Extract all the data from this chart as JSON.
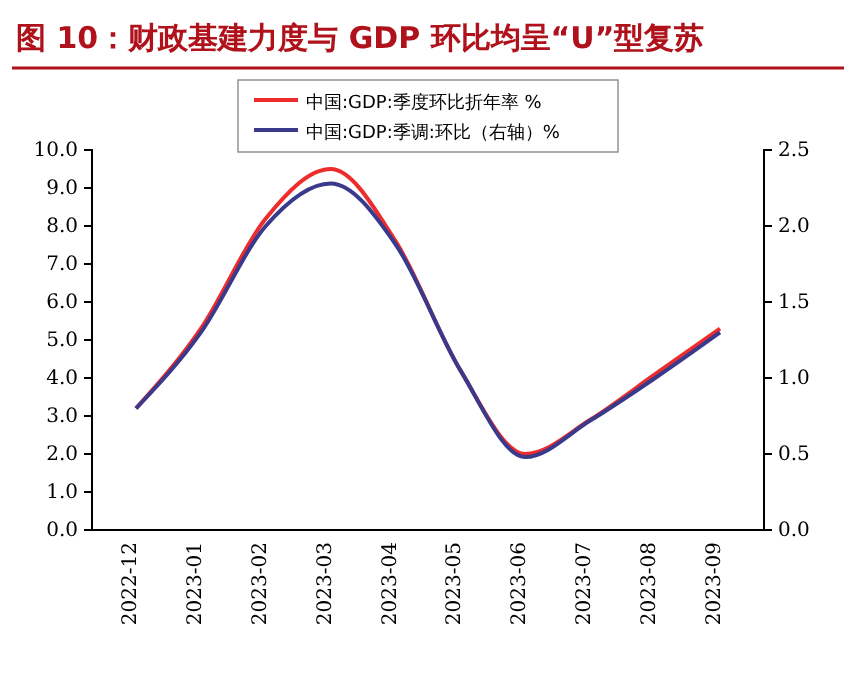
{
  "chart_data": {
    "type": "line",
    "title": "图 10：财政基建力度与 GDP 环比均呈“U”型复苏",
    "categories": [
      "2022-12",
      "2023-01",
      "2023-02",
      "2023-03",
      "2023-04",
      "2023-05",
      "2023-06",
      "2023-07",
      "2023-08",
      "2023-09"
    ],
    "series": [
      {
        "name": "中国:GDP:季度环比折年率 %",
        "color": "#ee2c2c",
        "values": [
          3.2,
          5.3,
          8.2,
          9.5,
          7.6,
          4.2,
          2.0,
          2.9,
          4.1,
          5.3
        ]
      },
      {
        "name": "中国:GDP:季调:环比（右轴）%",
        "color": "#3a3a8c",
        "axis": "y2",
        "values": [
          0.8,
          1.3,
          2.0,
          2.28,
          1.88,
          1.05,
          0.48,
          0.72,
          1.0,
          1.3
        ]
      }
    ],
    "ylim": [
      0,
      10
    ],
    "yticks": [
      {
        "value": 0,
        "label": "0.0"
      },
      {
        "value": 1,
        "label": "1.0"
      },
      {
        "value": 2,
        "label": "2.0"
      },
      {
        "value": 3,
        "label": "3.0"
      },
      {
        "value": 4,
        "label": "4.0"
      },
      {
        "value": 5,
        "label": "5.0"
      },
      {
        "value": 6,
        "label": "6.0"
      },
      {
        "value": 7,
        "label": "7.0"
      },
      {
        "value": 8,
        "label": "8.0"
      },
      {
        "value": 9,
        "label": "9.0"
      },
      {
        "value": 10,
        "label": "10.0"
      }
    ],
    "y2lim": [
      0,
      2.5
    ],
    "y2ticks": [
      {
        "value": 0,
        "label": "0.0"
      },
      {
        "value": 0.5,
        "label": "0.5"
      },
      {
        "value": 1,
        "label": "1.0"
      },
      {
        "value": 1.5,
        "label": "1.5"
      },
      {
        "value": 2,
        "label": "2.0"
      },
      {
        "value": 2.5,
        "label": "2.5"
      }
    ],
    "legend": "top",
    "grid": false,
    "marker": "none",
    "line_style": "solid"
  }
}
